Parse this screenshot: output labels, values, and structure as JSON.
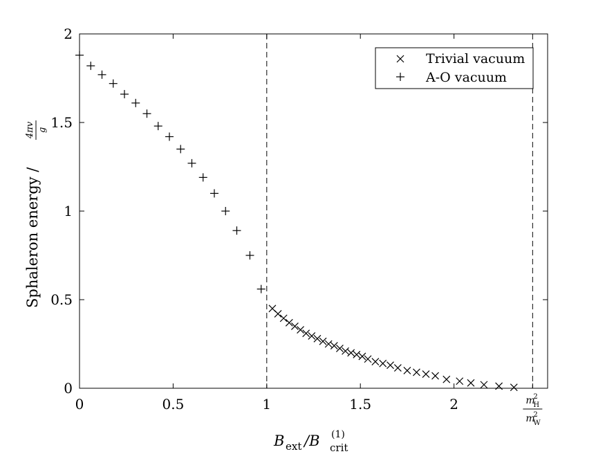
{
  "chart_data": {
    "type": "scatter",
    "xlabel": {
      "main": "B",
      "sub1": "ext",
      "slash": "/B",
      "sub2": "crit",
      "sup2": "(1)"
    },
    "ylabel": {
      "text": "Sphaleron energy  /",
      "num": "4πv",
      "den": "g"
    },
    "xlim": [
      0,
      2.5
    ],
    "ylim": [
      0,
      2
    ],
    "x_ticks": [
      {
        "value": 0,
        "label": "0"
      },
      {
        "value": 0.5,
        "label": "0.5"
      },
      {
        "value": 1,
        "label": "1"
      },
      {
        "value": 1.5,
        "label": "1.5"
      },
      {
        "value": 2,
        "label": "2"
      }
    ],
    "x_special_tick": {
      "value": 2.42,
      "num": "m",
      "num_sup": "2",
      "num_sub": "H",
      "den": "m",
      "den_sup": "2",
      "den_sub": "W"
    },
    "y_ticks": [
      {
        "value": 0,
        "label": "0"
      },
      {
        "value": 0.5,
        "label": "0.5"
      },
      {
        "value": 1,
        "label": "1"
      },
      {
        "value": 1.5,
        "label": "1.5"
      },
      {
        "value": 2,
        "label": "2"
      }
    ],
    "vlines": [
      1.0,
      2.42
    ],
    "legend": {
      "position": "top-right"
    },
    "series": [
      {
        "name": "Trivial vacuum",
        "marker": "x",
        "x": [
          1.03,
          1.06,
          1.09,
          1.12,
          1.15,
          1.18,
          1.21,
          1.24,
          1.27,
          1.3,
          1.33,
          1.36,
          1.39,
          1.42,
          1.45,
          1.48,
          1.51,
          1.54,
          1.58,
          1.62,
          1.66,
          1.7,
          1.75,
          1.8,
          1.85,
          1.9,
          1.96,
          2.03,
          2.09,
          2.16,
          2.24,
          2.32
        ],
        "y": [
          0.45,
          0.42,
          0.395,
          0.37,
          0.35,
          0.33,
          0.31,
          0.295,
          0.28,
          0.265,
          0.25,
          0.24,
          0.225,
          0.21,
          0.2,
          0.19,
          0.18,
          0.165,
          0.15,
          0.14,
          0.13,
          0.115,
          0.1,
          0.09,
          0.08,
          0.07,
          0.05,
          0.04,
          0.03,
          0.02,
          0.012,
          0.005
        ]
      },
      {
        "name": "A-O vacuum",
        "marker": "+",
        "x": [
          0.0,
          0.06,
          0.12,
          0.18,
          0.24,
          0.3,
          0.36,
          0.42,
          0.48,
          0.54,
          0.6,
          0.66,
          0.72,
          0.78,
          0.84,
          0.91,
          0.97
        ],
        "y": [
          1.88,
          1.82,
          1.77,
          1.72,
          1.66,
          1.61,
          1.55,
          1.48,
          1.42,
          1.35,
          1.27,
          1.19,
          1.1,
          1.0,
          0.89,
          0.75,
          0.56
        ]
      }
    ]
  }
}
